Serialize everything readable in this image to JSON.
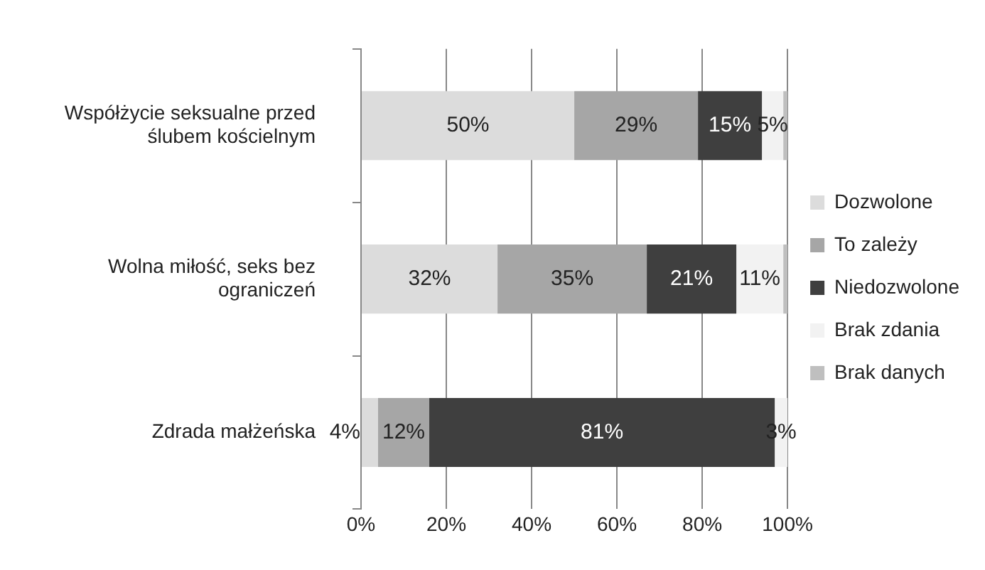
{
  "chart_data": {
    "type": "bar",
    "orientation": "horizontal",
    "stacked": true,
    "categories": [
      "Współżycie seksualne przed ślubem kościelnym",
      "Wolna miłość, seks bez ograniczeń",
      "Zdrada małżeńska"
    ],
    "series": [
      {
        "name": "Dozwolone",
        "color": "#dcdcdc",
        "values": [
          50,
          32,
          4
        ],
        "value_labels": [
          "50%",
          "32%",
          "4%"
        ]
      },
      {
        "name": "To zależy",
        "color": "#a6a6a6",
        "values": [
          29,
          35,
          12
        ],
        "value_labels": [
          "29%",
          "35%",
          "12%"
        ]
      },
      {
        "name": "Niedozwolone",
        "color": "#3f3f3f",
        "values": [
          15,
          21,
          81
        ],
        "value_labels": [
          "15%",
          "21%",
          "81%"
        ]
      },
      {
        "name": "Brak zdania",
        "color": "#f2f2f2",
        "values": [
          5,
          11,
          3
        ],
        "value_labels": [
          "5%",
          "11%",
          "3%"
        ]
      },
      {
        "name": "Brak danych",
        "color": "#bfbfbf",
        "values": [
          1,
          1,
          0
        ],
        "value_labels": [
          null,
          null,
          null
        ]
      }
    ],
    "xlim": [
      0,
      100
    ],
    "xticks": [
      {
        "value": 0,
        "label": "0%"
      },
      {
        "value": 20,
        "label": "20%"
      },
      {
        "value": 40,
        "label": "40%"
      },
      {
        "value": 60,
        "label": "60%"
      },
      {
        "value": 80,
        "label": "80%"
      },
      {
        "value": 100,
        "label": "100%"
      }
    ],
    "grid": "x",
    "legend": "right"
  }
}
